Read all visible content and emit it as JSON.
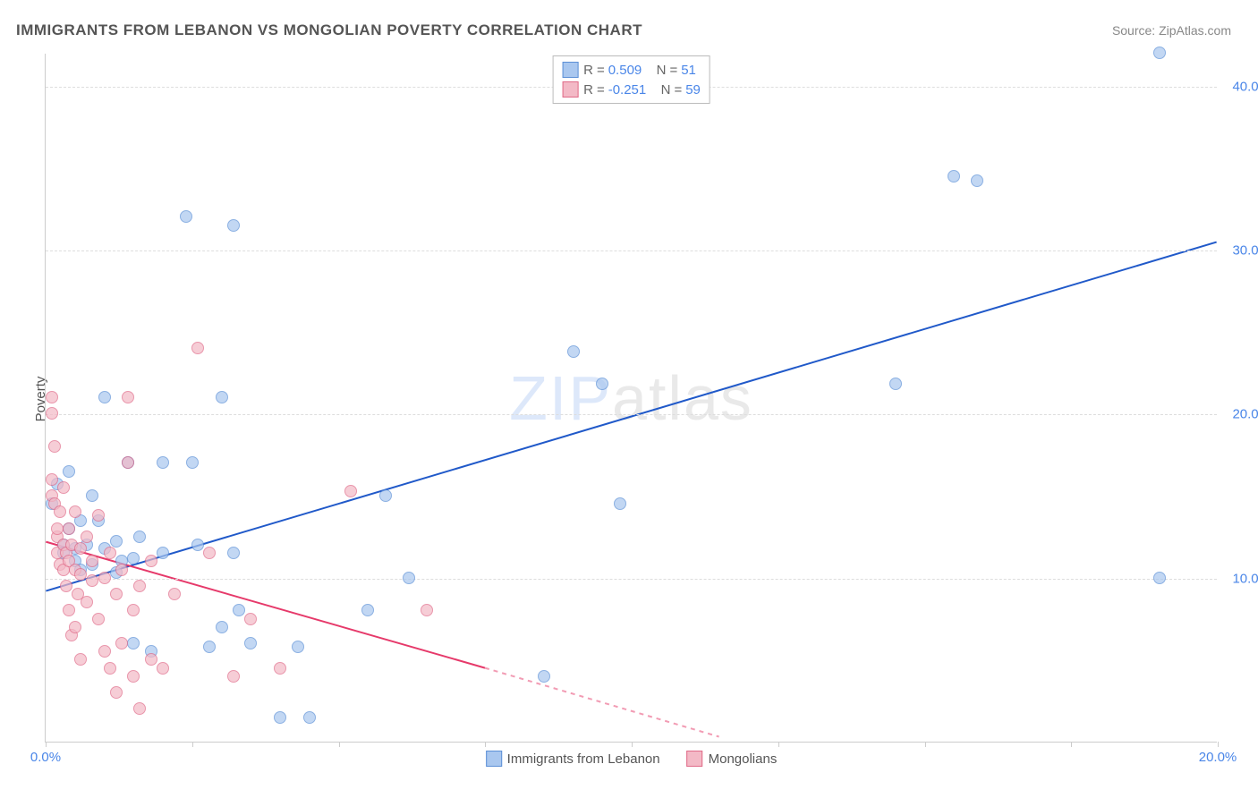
{
  "title": "IMMIGRANTS FROM LEBANON VS MONGOLIAN POVERTY CORRELATION CHART",
  "source_label": "Source:",
  "source_value": "ZipAtlas.com",
  "y_axis_title": "Poverty",
  "watermark_bold": "ZIP",
  "watermark_thin": "atlas",
  "chart": {
    "type": "scatter",
    "xlim": [
      0,
      20
    ],
    "ylim": [
      0,
      42
    ],
    "x_ticks": [
      0,
      2.5,
      5,
      7.5,
      10,
      12.5,
      15,
      17.5,
      20
    ],
    "x_tick_labels": {
      "0": "0.0%",
      "20": "20.0%"
    },
    "y_ticks": [
      10,
      20,
      30,
      40
    ],
    "y_tick_labels": {
      "10": "10.0%",
      "20": "20.0%",
      "30": "30.0%",
      "40": "40.0%"
    },
    "grid_color": "#dddddd",
    "axis_color": "#cccccc",
    "background_color": "#ffffff",
    "series": [
      {
        "name": "Immigrants from Lebanon",
        "fill": "#a9c7ef",
        "stroke": "#5b8fd6",
        "line_color": "#2059c9",
        "R_label": "R",
        "R_value": "0.509",
        "N_label": "N",
        "N_value": "51",
        "regression": {
          "x1": 0,
          "y1": 9.2,
          "x2": 20,
          "y2": 30.5
        },
        "points": [
          [
            0.1,
            14.5
          ],
          [
            0.2,
            15.7
          ],
          [
            0.3,
            12.0
          ],
          [
            0.3,
            11.5
          ],
          [
            0.4,
            13.0
          ],
          [
            0.4,
            16.5
          ],
          [
            0.5,
            11.0
          ],
          [
            0.5,
            11.8
          ],
          [
            0.6,
            10.5
          ],
          [
            0.6,
            13.5
          ],
          [
            0.7,
            12.0
          ],
          [
            0.8,
            10.8
          ],
          [
            0.8,
            15.0
          ],
          [
            0.9,
            13.5
          ],
          [
            1.0,
            21.0
          ],
          [
            1.0,
            11.8
          ],
          [
            1.2,
            12.2
          ],
          [
            1.2,
            10.3
          ],
          [
            1.3,
            11.0
          ],
          [
            1.4,
            17.0
          ],
          [
            1.5,
            11.2
          ],
          [
            1.5,
            6.0
          ],
          [
            1.6,
            12.5
          ],
          [
            1.8,
            5.5
          ],
          [
            2.0,
            17.0
          ],
          [
            2.0,
            11.5
          ],
          [
            2.4,
            32.0
          ],
          [
            2.5,
            17.0
          ],
          [
            2.6,
            12.0
          ],
          [
            2.8,
            5.8
          ],
          [
            3.0,
            21.0
          ],
          [
            3.0,
            7.0
          ],
          [
            3.2,
            11.5
          ],
          [
            3.2,
            31.5
          ],
          [
            3.3,
            8.0
          ],
          [
            3.5,
            6.0
          ],
          [
            4.0,
            1.5
          ],
          [
            4.3,
            5.8
          ],
          [
            4.5,
            1.5
          ],
          [
            5.5,
            8.0
          ],
          [
            5.8,
            15.0
          ],
          [
            6.2,
            10.0
          ],
          [
            8.5,
            4.0
          ],
          [
            9.0,
            23.8
          ],
          [
            9.5,
            21.8
          ],
          [
            9.8,
            14.5
          ],
          [
            14.5,
            21.8
          ],
          [
            15.5,
            34.5
          ],
          [
            15.9,
            34.2
          ],
          [
            19.0,
            10.0
          ],
          [
            19.0,
            42.0
          ]
        ]
      },
      {
        "name": "Mongolians",
        "fill": "#f3b9c6",
        "stroke": "#e06a88",
        "line_color": "#e6396a",
        "R_label": "R",
        "R_value": "-0.251",
        "N_label": "N",
        "N_value": "59",
        "regression": {
          "x1": 0,
          "y1": 12.2,
          "x2": 7.5,
          "y2": 4.5
        },
        "regression_dash": {
          "x1": 7.5,
          "y1": 4.5,
          "x2": 11.5,
          "y2": 0.3
        },
        "points": [
          [
            0.1,
            21.0
          ],
          [
            0.1,
            20.0
          ],
          [
            0.1,
            16.0
          ],
          [
            0.1,
            15.0
          ],
          [
            0.15,
            14.5
          ],
          [
            0.15,
            18.0
          ],
          [
            0.2,
            12.5
          ],
          [
            0.2,
            13.0
          ],
          [
            0.2,
            11.5
          ],
          [
            0.25,
            14.0
          ],
          [
            0.25,
            10.8
          ],
          [
            0.3,
            12.0
          ],
          [
            0.3,
            15.5
          ],
          [
            0.3,
            10.5
          ],
          [
            0.35,
            11.5
          ],
          [
            0.35,
            9.5
          ],
          [
            0.4,
            13.0
          ],
          [
            0.4,
            11.0
          ],
          [
            0.4,
            8.0
          ],
          [
            0.45,
            12.0
          ],
          [
            0.45,
            6.5
          ],
          [
            0.5,
            10.5
          ],
          [
            0.5,
            14.0
          ],
          [
            0.5,
            7.0
          ],
          [
            0.55,
            9.0
          ],
          [
            0.6,
            11.8
          ],
          [
            0.6,
            10.2
          ],
          [
            0.6,
            5.0
          ],
          [
            0.7,
            12.5
          ],
          [
            0.7,
            8.5
          ],
          [
            0.8,
            9.8
          ],
          [
            0.8,
            11.0
          ],
          [
            0.9,
            7.5
          ],
          [
            0.9,
            13.8
          ],
          [
            1.0,
            10.0
          ],
          [
            1.0,
            5.5
          ],
          [
            1.1,
            11.5
          ],
          [
            1.1,
            4.5
          ],
          [
            1.2,
            3.0
          ],
          [
            1.2,
            9.0
          ],
          [
            1.3,
            10.5
          ],
          [
            1.3,
            6.0
          ],
          [
            1.4,
            17.0
          ],
          [
            1.4,
            21.0
          ],
          [
            1.5,
            8.0
          ],
          [
            1.5,
            4.0
          ],
          [
            1.6,
            9.5
          ],
          [
            1.6,
            2.0
          ],
          [
            1.8,
            11.0
          ],
          [
            1.8,
            5.0
          ],
          [
            2.0,
            4.5
          ],
          [
            2.2,
            9.0
          ],
          [
            2.6,
            24.0
          ],
          [
            2.8,
            11.5
          ],
          [
            3.2,
            4.0
          ],
          [
            3.5,
            7.5
          ],
          [
            4.0,
            4.5
          ],
          [
            5.2,
            15.3
          ],
          [
            6.5,
            8.0
          ]
        ]
      }
    ]
  }
}
